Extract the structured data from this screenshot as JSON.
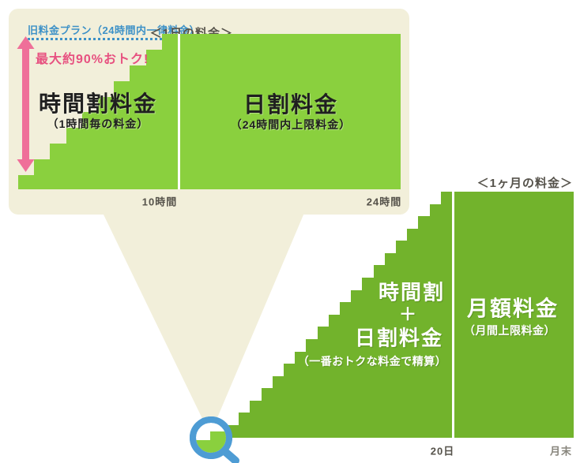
{
  "colors": {
    "page_bg": "#FFFFFF",
    "panel_bg": "#F2EFDA",
    "daily_green": "#8AD03E",
    "monthly_green": "#72B32C",
    "blue": "#3D91C7",
    "magnifier_blue": "#4E9CD4",
    "arrow_pink": "#EF6F99",
    "badge_pink": "#E75180",
    "label_dark": "#55524A",
    "tick_muted": "#87857C",
    "title_black": "#1F1F1F",
    "text_white": "#FFFFFF"
  },
  "daily": {
    "header": "＜1日の料金＞",
    "old_plan_label": "旧料金プラン（24時間内一律料金）",
    "savings_badge": "最大約90%おトク!",
    "hourly_block": {
      "title": "時間割料金",
      "subtitle": "（1時間毎の料金）"
    },
    "daily_block": {
      "title": "日割料金",
      "subtitle": "（24時間内上限料金）"
    },
    "ticks": {
      "hour10": "10時間",
      "hour24": "24時間"
    },
    "steps_hours": 10
  },
  "monthly": {
    "header": "＜1ヶ月の料金＞",
    "stair_block": {
      "line1": "時間割",
      "plus": "＋",
      "line2": "日割料金",
      "subtitle": "（一番おトクな料金で精算）"
    },
    "flat_block": {
      "title": "月額料金",
      "subtitle": "（月間上限料金）"
    },
    "ticks": {
      "day20": "20日",
      "month_end": "月末"
    },
    "steps_days": 20
  },
  "icons": {
    "magnifier": "magnifier-icon",
    "savings_arrow": "double-headed-arrow-icon"
  }
}
